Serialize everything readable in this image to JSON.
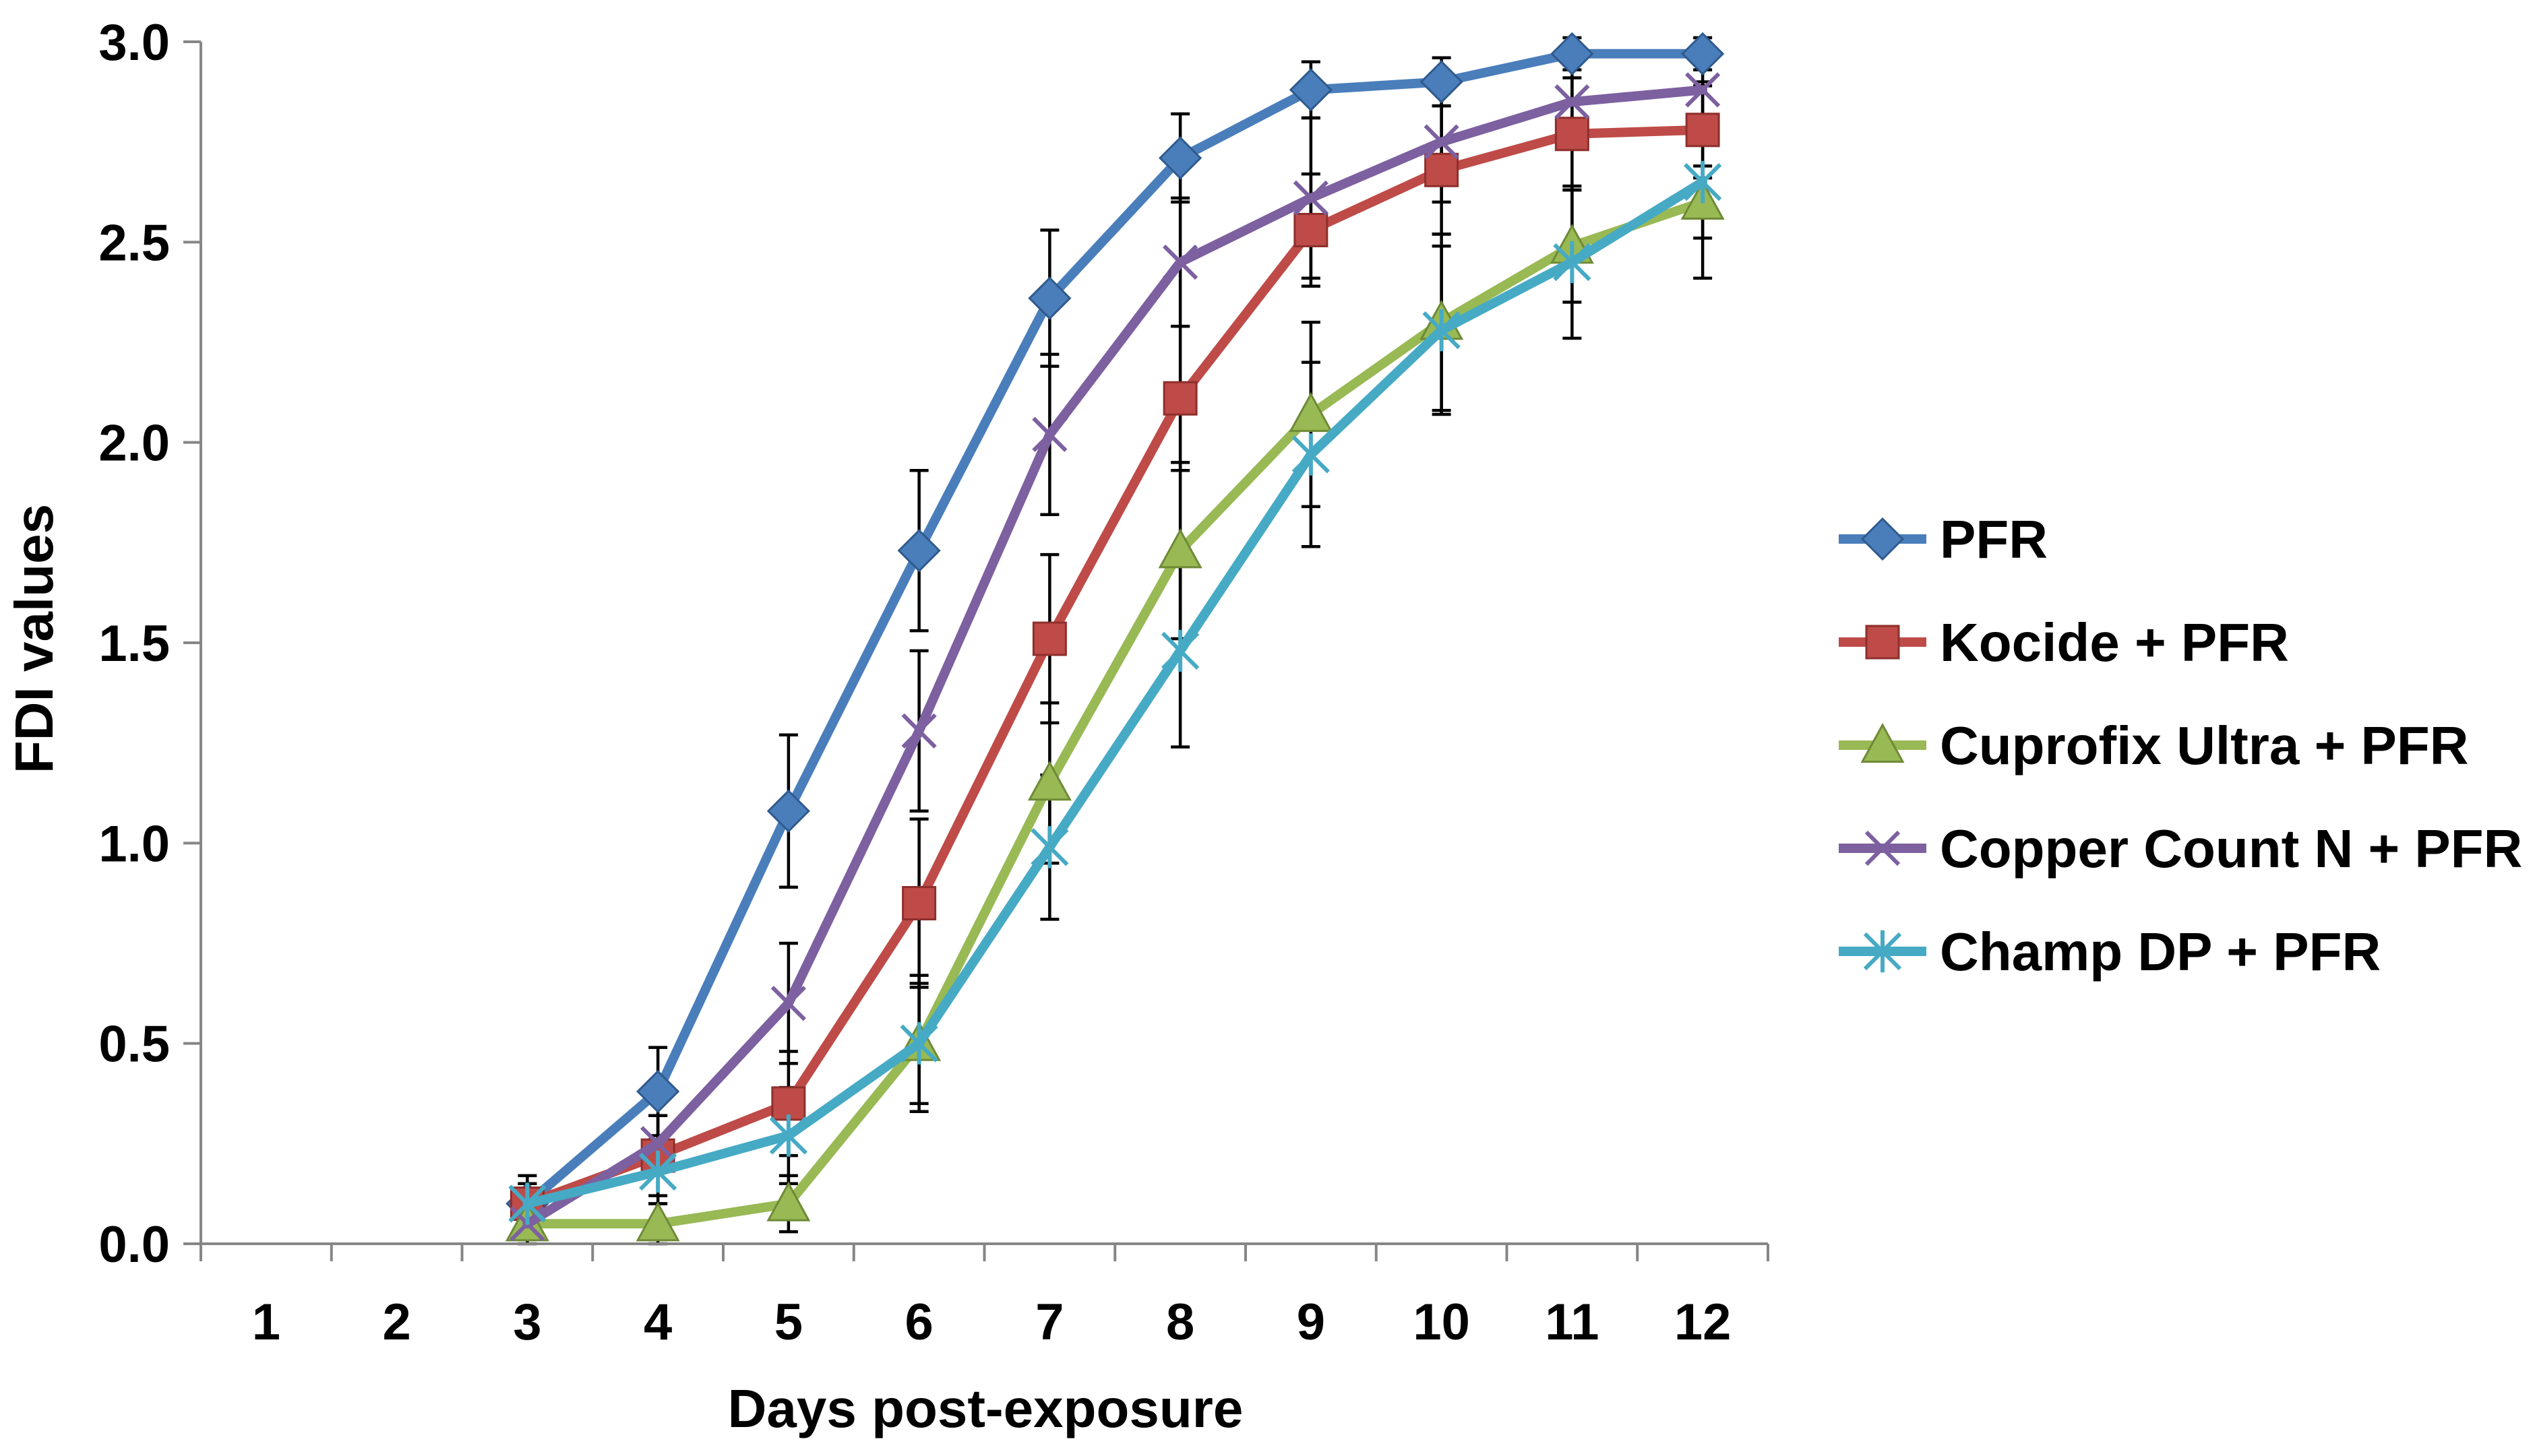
{
  "chart_data": {
    "type": "line",
    "title": "",
    "xlabel": "Days post-exposure",
    "ylabel": "FDI values",
    "x": [
      1,
      2,
      3,
      4,
      5,
      6,
      7,
      8,
      9,
      10,
      11,
      12
    ],
    "x_tick_labels": [
      "1",
      "2",
      "3",
      "4",
      "5",
      "6",
      "7",
      "8",
      "9",
      "10",
      "11",
      "12"
    ],
    "y_tick_labels": [
      "0.0",
      "0.5",
      "1.0",
      "1.5",
      "2.0",
      "2.5",
      "3.0"
    ],
    "ylim": [
      0,
      3.0
    ],
    "ystep": 0.5,
    "grid": false,
    "legend_position": "right",
    "series": [
      {
        "name": "PFR",
        "color": "#4A7EBB",
        "marker": "diamond",
        "x": [
          3,
          4,
          5,
          6,
          7,
          8,
          9,
          10,
          11,
          12
        ],
        "values": [
          0.1,
          0.38,
          1.08,
          1.73,
          2.36,
          2.71,
          2.88,
          2.9,
          2.97,
          2.97
        ],
        "errors": [
          0.05,
          0.11,
          0.19,
          0.2,
          0.17,
          0.11,
          0.07,
          0.06,
          0.04,
          0.04
        ]
      },
      {
        "name": "Kocide + PFR",
        "color": "#BE4B48",
        "marker": "square",
        "x": [
          3,
          4,
          5,
          6,
          7,
          8,
          9,
          10,
          11,
          12
        ],
        "values": [
          0.1,
          0.22,
          0.35,
          0.85,
          1.51,
          2.11,
          2.53,
          2.68,
          2.77,
          2.78
        ],
        "errors": [
          0.07,
          0.1,
          0.13,
          0.21,
          0.21,
          0.18,
          0.14,
          0.16,
          0.14,
          0.12
        ]
      },
      {
        "name": "Cuprofix Ultra + PFR",
        "color": "#98B954",
        "marker": "triangle",
        "x": [
          3,
          4,
          5,
          6,
          7,
          8,
          9,
          10,
          11,
          12
        ],
        "values": [
          0.05,
          0.05,
          0.1,
          0.5,
          1.15,
          1.73,
          2.07,
          2.3,
          2.49,
          2.6
        ],
        "errors": [
          0.03,
          0.05,
          0.07,
          0.15,
          0.2,
          0.22,
          0.23,
          0.22,
          0.14,
          0.09
        ]
      },
      {
        "name": "Copper Count N + PFR",
        "color": "#7D60A0",
        "marker": "x",
        "x": [
          3,
          4,
          5,
          6,
          7,
          8,
          9,
          10,
          11,
          12
        ],
        "values": [
          0.05,
          0.25,
          0.6,
          1.28,
          2.02,
          2.45,
          2.61,
          2.75,
          2.85,
          2.88
        ],
        "errors": [
          0.05,
          0.07,
          0.15,
          0.2,
          0.2,
          0.16,
          0.2,
          0.15,
          0.1,
          0.07
        ]
      },
      {
        "name": "Champ DP + PFR",
        "color": "#46AAC5",
        "marker": "asterisk",
        "x": [
          3,
          4,
          5,
          6,
          7,
          8,
          9,
          10,
          11,
          12
        ],
        "values": [
          0.1,
          0.18,
          0.27,
          0.5,
          0.99,
          1.48,
          1.97,
          2.28,
          2.45,
          2.65
        ],
        "errors": [
          0.05,
          0.08,
          0.12,
          0.17,
          0.18,
          0.24,
          0.23,
          0.21,
          0.19,
          0.24
        ]
      }
    ]
  }
}
